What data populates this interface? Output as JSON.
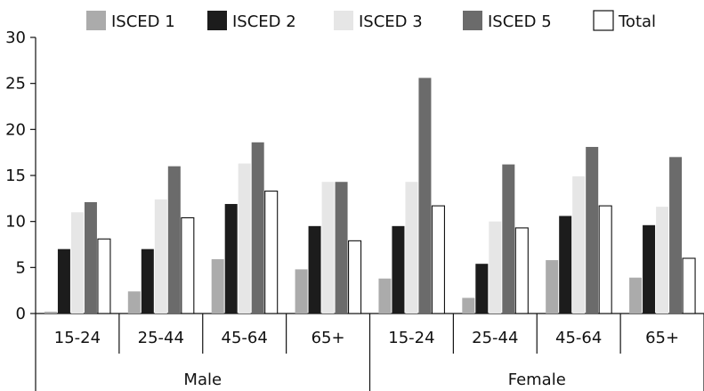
{
  "chart_data": {
    "type": "bar",
    "groups": [
      {
        "label": "Male",
        "categories": [
          "15-24",
          "25-44",
          "45-64",
          "65+"
        ]
      },
      {
        "label": "Female",
        "categories": [
          "15-24",
          "25-44",
          "45-64",
          "65+"
        ]
      }
    ],
    "series": [
      {
        "name": "ISCED 1",
        "color": "#ABABAB",
        "values": [
          0.2,
          2.4,
          5.9,
          4.8,
          3.8,
          1.7,
          5.8,
          3.9
        ]
      },
      {
        "name": "ISCED 2",
        "color": "#1C1C1C",
        "values": [
          7.0,
          7.0,
          11.9,
          9.5,
          9.5,
          5.4,
          10.6,
          9.6
        ]
      },
      {
        "name": "ISCED 3",
        "color": "#E6E6E6",
        "values": [
          11.0,
          12.4,
          16.3,
          14.3,
          14.3,
          10.0,
          14.9,
          11.6
        ]
      },
      {
        "name": "ISCED 5",
        "color": "#6B6B6B",
        "values": [
          12.1,
          16.0,
          18.6,
          14.3,
          25.6,
          16.2,
          18.1,
          17.0
        ]
      },
      {
        "name": "Total",
        "color": "#FFFFFF",
        "values": [
          8.1,
          10.4,
          13.3,
          7.9,
          11.7,
          9.3,
          11.7,
          6.0
        ]
      }
    ],
    "ylim": [
      0,
      30
    ],
    "yticks": [
      0,
      5,
      10,
      15,
      20,
      25,
      30
    ],
    "grid": false,
    "legend_position": "top",
    "title": "",
    "xlabel": "",
    "ylabel": ""
  }
}
